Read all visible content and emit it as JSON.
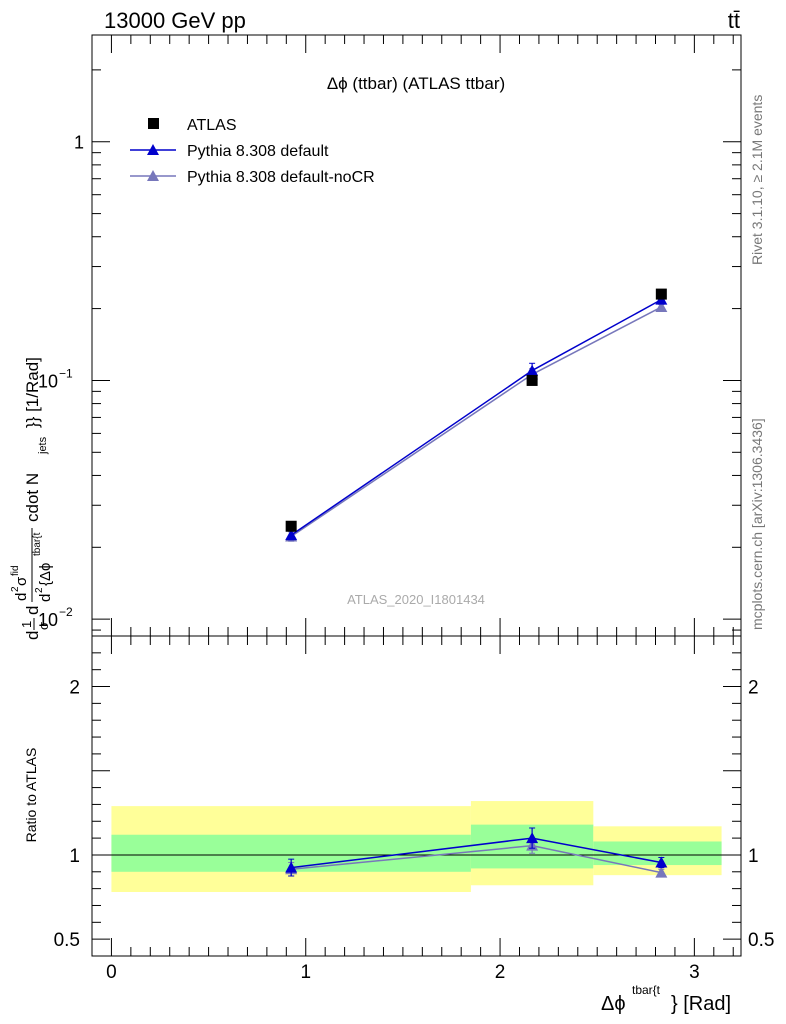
{
  "header": {
    "left": "13000 GeV pp",
    "right": "tt̄"
  },
  "side_labels": {
    "rivet": "Rivet 3.1.10, ≥ 2.1M events",
    "mcplots": "mcplots.cern.ch [arXiv:1306.3436]"
  },
  "chart_data": [
    {
      "type": "line",
      "title": "Δϕ (ttbar) (ATLAS ttbar)",
      "watermark": "ATLAS_2020_I1801434",
      "ylabel": "dσ₀₁ d²σ fid / d²{Δϕ tbar{t} cdot N jets}} [1/Rad]",
      "ylabel_parts": {
        "frac1_num": "1",
        "frac1_den": "σ",
        "d1": "d",
        "d2": "d",
        "frac2_num": "d",
        "frac2_num_sup": "2",
        "frac2_num_sym": "σ",
        "frac2_num_sym_sup": "fid",
        "frac2_den": "d",
        "frac2_den_sup": "2",
        "frac2_den_rest": "{Δϕ",
        "frac2_den_sup2": "tbar{t",
        "tail": "cdot N",
        "tail_sub": "jets",
        "tail_end": "}} [1/Rad]"
      },
      "ylog": true,
      "ylim": [
        0.0085,
        2.8
      ],
      "xlim": [
        -0.1,
        3.24
      ],
      "y_ticks": [
        {
          "value": 1,
          "label": "1"
        },
        {
          "value": 0.1,
          "label": "10",
          "exp": "−1"
        },
        {
          "value": 0.01,
          "label": "10",
          "exp": "−2"
        }
      ],
      "legend_position": "top-left",
      "series": [
        {
          "name": "ATLAS",
          "color": "#000000",
          "marker": "square",
          "x": [
            0.925,
            2.165,
            2.83
          ],
          "y": [
            0.0245,
            0.1,
            0.23
          ],
          "bins": [
            [
              0,
              1.85
            ],
            [
              1.85,
              2.48
            ],
            [
              2.48,
              3.14
            ]
          ]
        },
        {
          "name": "Pythia 8.308 default",
          "color": "#0000cc",
          "marker": "triangle",
          "x": [
            0.925,
            2.165,
            2.83
          ],
          "y": [
            0.0225,
            0.11,
            0.218
          ],
          "yerr": [
            0.001,
            0.008,
            0.006
          ]
        },
        {
          "name": "Pythia 8.308 default-noCR",
          "color": "#7777bb",
          "marker": "triangle",
          "x": [
            0.925,
            2.165,
            2.83
          ],
          "y": [
            0.0222,
            0.106,
            0.203
          ],
          "yerr": [
            0.001,
            0.006,
            0.005
          ]
        }
      ]
    },
    {
      "type": "line",
      "ylabel": "Ratio to ATLAS",
      "xlabel": "Δϕ",
      "xlabel_sup": "tbar{t",
      "xlabel_tail": "} [Rad]",
      "ylim": [
        0.4,
        2.3
      ],
      "xlim": [
        -0.1,
        3.24
      ],
      "y_ticks": [
        {
          "value": 0.5,
          "label": "0.5"
        },
        {
          "value": 1,
          "label": "1"
        },
        {
          "value": 2,
          "label": "2"
        }
      ],
      "x_ticks": [
        {
          "value": 0,
          "label": "0"
        },
        {
          "value": 1,
          "label": "1"
        },
        {
          "value": 2,
          "label": "2"
        },
        {
          "value": 3,
          "label": "3"
        }
      ],
      "bands": [
        {
          "x0": 0,
          "x1": 1.85,
          "stat_lo": 0.9,
          "stat_hi": 1.12,
          "tot_lo": 0.78,
          "tot_hi": 1.29
        },
        {
          "x0": 1.85,
          "x1": 2.48,
          "stat_lo": 0.92,
          "stat_hi": 1.18,
          "tot_lo": 0.82,
          "tot_hi": 1.32
        },
        {
          "x0": 2.48,
          "x1": 3.14,
          "stat_lo": 0.94,
          "stat_hi": 1.08,
          "tot_lo": 0.88,
          "tot_hi": 1.17
        }
      ],
      "band_colors": {
        "stat": "#99ff99",
        "total": "#ffff99"
      },
      "series": [
        {
          "name": "Pythia 8.308 default",
          "color": "#0000cc",
          "x": [
            0.925,
            2.165,
            2.83
          ],
          "y": [
            0.925,
            1.1,
            0.955
          ],
          "yerr": [
            0.05,
            0.06,
            0.03
          ]
        },
        {
          "name": "Pythia 8.308 default-noCR",
          "color": "#7777bb",
          "x": [
            0.925,
            2.165,
            2.83
          ],
          "y": [
            0.915,
            1.055,
            0.895
          ],
          "yerr": [
            0.04,
            0.045,
            0.02
          ]
        }
      ]
    }
  ]
}
